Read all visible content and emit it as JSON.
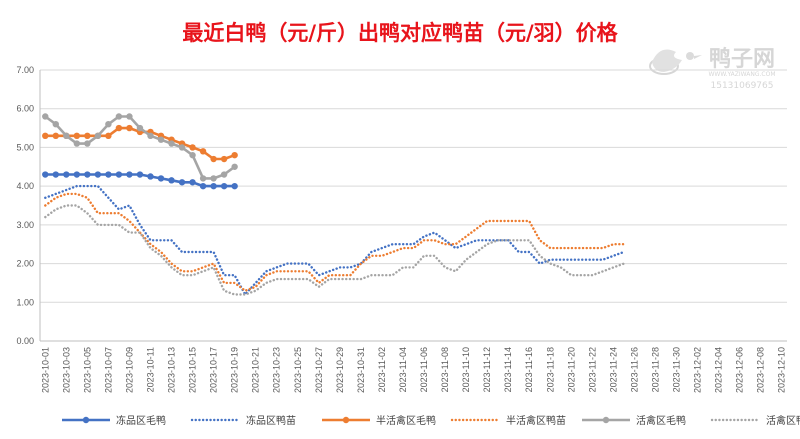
{
  "chart_data": {
    "type": "line",
    "title": "最近白鸭（元/斤）出鸭对应鸭苗（元/羽）价格",
    "title_color": "#e8141b",
    "ylim": [
      0,
      7
    ],
    "y_ticks": [
      "0.00",
      "1.00",
      "2.00",
      "3.00",
      "4.00",
      "5.00",
      "6.00",
      "7.00"
    ],
    "x_tick_labels": [
      "2023-10-01",
      "2023-10-03",
      "2023-10-05",
      "2023-10-07",
      "2023-10-09",
      "2023-10-11",
      "2023-10-13",
      "2023-10-15",
      "2023-10-17",
      "2023-10-19",
      "2023-10-21",
      "2023-10-23",
      "2023-10-25",
      "2023-10-27",
      "2023-10-29",
      "2023-10-31",
      "2023-11-02",
      "2023-11-04",
      "2023-11-06",
      "2023-11-08",
      "2023-11-10",
      "2023-11-12",
      "2023-11-14",
      "2023-11-16",
      "2023-11-18",
      "2023-11-20",
      "2023-11-22",
      "2023-11-24",
      "2023-11-26",
      "2023-11-28",
      "2023-11-30",
      "2023-12-02",
      "2023-12-04",
      "2023-12-06",
      "2023-12-08",
      "2023-12-10"
    ],
    "grid": "horizontal",
    "legend_position": "bottom",
    "series": [
      {
        "name": "冻品区毛鸭",
        "color": "#4472c4",
        "style": "solid-marker",
        "x": [
          "2023-10-01",
          "2023-10-02",
          "2023-10-03",
          "2023-10-04",
          "2023-10-05",
          "2023-10-06",
          "2023-10-07",
          "2023-10-08",
          "2023-10-09",
          "2023-10-10",
          "2023-10-11",
          "2023-10-12",
          "2023-10-13",
          "2023-10-14",
          "2023-10-15",
          "2023-10-16",
          "2023-10-17",
          "2023-10-18",
          "2023-10-19"
        ],
        "values": [
          4.3,
          4.3,
          4.3,
          4.3,
          4.3,
          4.3,
          4.3,
          4.3,
          4.3,
          4.3,
          4.25,
          4.2,
          4.15,
          4.1,
          4.1,
          4.0,
          4.0,
          4.0,
          4.0
        ]
      },
      {
        "name": "冻品区鸭苗",
        "color": "#4472c4",
        "style": "dotted",
        "x": [
          "2023-10-01",
          "2023-10-02",
          "2023-10-03",
          "2023-10-04",
          "2023-10-05",
          "2023-10-06",
          "2023-10-07",
          "2023-10-08",
          "2023-10-09",
          "2023-10-10",
          "2023-10-11",
          "2023-10-12",
          "2023-10-13",
          "2023-10-14",
          "2023-10-15",
          "2023-10-16",
          "2023-10-17",
          "2023-10-18",
          "2023-10-19",
          "2023-10-20",
          "2023-10-21",
          "2023-10-22",
          "2023-10-23",
          "2023-10-24",
          "2023-10-25",
          "2023-10-26",
          "2023-10-27",
          "2023-10-28",
          "2023-10-29",
          "2023-10-30",
          "2023-10-31",
          "2023-11-01",
          "2023-11-02",
          "2023-11-03",
          "2023-11-04",
          "2023-11-05",
          "2023-11-06",
          "2023-11-07",
          "2023-11-08",
          "2023-11-09",
          "2023-11-10",
          "2023-11-11",
          "2023-11-12",
          "2023-11-13",
          "2023-11-14",
          "2023-11-15",
          "2023-11-16",
          "2023-11-17",
          "2023-11-18",
          "2023-11-19",
          "2023-11-20",
          "2023-11-21",
          "2023-11-22",
          "2023-11-23",
          "2023-11-24",
          "2023-11-25"
        ],
        "values": [
          3.7,
          3.8,
          3.9,
          4.0,
          4.0,
          4.0,
          3.7,
          3.4,
          3.5,
          3.0,
          2.6,
          2.6,
          2.6,
          2.3,
          2.3,
          2.3,
          2.3,
          1.7,
          1.7,
          1.2,
          1.5,
          1.8,
          1.9,
          2.0,
          2.0,
          2.0,
          1.7,
          1.8,
          1.9,
          1.9,
          2.0,
          2.3,
          2.4,
          2.5,
          2.5,
          2.5,
          2.7,
          2.8,
          2.6,
          2.4,
          2.5,
          2.6,
          2.6,
          2.6,
          2.6,
          2.3,
          2.3,
          2.0,
          2.1,
          2.1,
          2.1,
          2.1,
          2.1,
          2.1,
          2.2,
          2.3
        ]
      },
      {
        "name": "半活禽区毛鸭",
        "color": "#ed7d31",
        "style": "solid-marker",
        "x": [
          "2023-10-01",
          "2023-10-02",
          "2023-10-03",
          "2023-10-04",
          "2023-10-05",
          "2023-10-06",
          "2023-10-07",
          "2023-10-08",
          "2023-10-09",
          "2023-10-10",
          "2023-10-11",
          "2023-10-12",
          "2023-10-13",
          "2023-10-14",
          "2023-10-15",
          "2023-10-16",
          "2023-10-17",
          "2023-10-18",
          "2023-10-19"
        ],
        "values": [
          5.3,
          5.3,
          5.3,
          5.3,
          5.3,
          5.3,
          5.3,
          5.5,
          5.5,
          5.4,
          5.4,
          5.3,
          5.2,
          5.1,
          5.0,
          4.9,
          4.7,
          4.7,
          4.8
        ]
      },
      {
        "name": "半活禽区鸭苗",
        "color": "#ed7d31",
        "style": "dotted",
        "x": [
          "2023-10-01",
          "2023-10-02",
          "2023-10-03",
          "2023-10-04",
          "2023-10-05",
          "2023-10-06",
          "2023-10-07",
          "2023-10-08",
          "2023-10-09",
          "2023-10-10",
          "2023-10-11",
          "2023-10-12",
          "2023-10-13",
          "2023-10-14",
          "2023-10-15",
          "2023-10-16",
          "2023-10-17",
          "2023-10-18",
          "2023-10-19",
          "2023-10-20",
          "2023-10-21",
          "2023-10-22",
          "2023-10-23",
          "2023-10-24",
          "2023-10-25",
          "2023-10-26",
          "2023-10-27",
          "2023-10-28",
          "2023-10-29",
          "2023-10-30",
          "2023-10-31",
          "2023-11-01",
          "2023-11-02",
          "2023-11-03",
          "2023-11-04",
          "2023-11-05",
          "2023-11-06",
          "2023-11-07",
          "2023-11-08",
          "2023-11-09",
          "2023-11-10",
          "2023-11-11",
          "2023-11-12",
          "2023-11-13",
          "2023-11-14",
          "2023-11-15",
          "2023-11-16",
          "2023-11-17",
          "2023-11-18",
          "2023-11-19",
          "2023-11-20",
          "2023-11-21",
          "2023-11-22",
          "2023-11-23",
          "2023-11-24",
          "2023-11-25"
        ],
        "values": [
          3.5,
          3.7,
          3.8,
          3.8,
          3.7,
          3.3,
          3.3,
          3.3,
          3.1,
          2.8,
          2.5,
          2.3,
          2.0,
          1.8,
          1.8,
          1.9,
          2.0,
          1.5,
          1.5,
          1.3,
          1.4,
          1.7,
          1.8,
          1.8,
          1.8,
          1.8,
          1.5,
          1.7,
          1.7,
          1.7,
          2.0,
          2.2,
          2.2,
          2.3,
          2.4,
          2.4,
          2.6,
          2.6,
          2.5,
          2.5,
          2.7,
          2.9,
          3.1,
          3.1,
          3.1,
          3.1,
          3.1,
          2.6,
          2.4,
          2.4,
          2.4,
          2.4,
          2.4,
          2.4,
          2.5,
          2.5
        ]
      },
      {
        "name": "活禽区毛鸭",
        "color": "#a5a5a5",
        "style": "solid-marker",
        "x": [
          "2023-10-01",
          "2023-10-02",
          "2023-10-03",
          "2023-10-04",
          "2023-10-05",
          "2023-10-06",
          "2023-10-07",
          "2023-10-08",
          "2023-10-09",
          "2023-10-10",
          "2023-10-11",
          "2023-10-12",
          "2023-10-13",
          "2023-10-14",
          "2023-10-15",
          "2023-10-16",
          "2023-10-17",
          "2023-10-18",
          "2023-10-19"
        ],
        "values": [
          5.8,
          5.6,
          5.3,
          5.1,
          5.1,
          5.3,
          5.6,
          5.8,
          5.8,
          5.5,
          5.3,
          5.2,
          5.1,
          5.0,
          4.8,
          4.2,
          4.2,
          4.3,
          4.5
        ]
      },
      {
        "name": "活禽区鸭苗",
        "color": "#a5a5a5",
        "style": "dotted",
        "x": [
          "2023-10-01",
          "2023-10-02",
          "2023-10-03",
          "2023-10-04",
          "2023-10-05",
          "2023-10-06",
          "2023-10-07",
          "2023-10-08",
          "2023-10-09",
          "2023-10-10",
          "2023-10-11",
          "2023-10-12",
          "2023-10-13",
          "2023-10-14",
          "2023-10-15",
          "2023-10-16",
          "2023-10-17",
          "2023-10-18",
          "2023-10-19",
          "2023-10-20",
          "2023-10-21",
          "2023-10-22",
          "2023-10-23",
          "2023-10-24",
          "2023-10-25",
          "2023-10-26",
          "2023-10-27",
          "2023-10-28",
          "2023-10-29",
          "2023-10-30",
          "2023-10-31",
          "2023-11-01",
          "2023-11-02",
          "2023-11-03",
          "2023-11-04",
          "2023-11-05",
          "2023-11-06",
          "2023-11-07",
          "2023-11-08",
          "2023-11-09",
          "2023-11-10",
          "2023-11-11",
          "2023-11-12",
          "2023-11-13",
          "2023-11-14",
          "2023-11-15",
          "2023-11-16",
          "2023-11-17",
          "2023-11-18",
          "2023-11-19",
          "2023-11-20",
          "2023-11-21",
          "2023-11-22",
          "2023-11-23",
          "2023-11-24",
          "2023-11-25"
        ],
        "values": [
          3.2,
          3.4,
          3.5,
          3.5,
          3.3,
          3.0,
          3.0,
          3.0,
          2.8,
          2.8,
          2.4,
          2.2,
          1.9,
          1.7,
          1.7,
          1.8,
          1.9,
          1.3,
          1.2,
          1.2,
          1.3,
          1.5,
          1.6,
          1.6,
          1.6,
          1.6,
          1.4,
          1.6,
          1.6,
          1.6,
          1.6,
          1.7,
          1.7,
          1.7,
          1.9,
          1.9,
          2.2,
          2.2,
          1.9,
          1.8,
          2.1,
          2.3,
          2.5,
          2.6,
          2.6,
          2.6,
          2.6,
          2.2,
          2.0,
          1.9,
          1.7,
          1.7,
          1.7,
          1.8,
          1.9,
          2.0
        ]
      }
    ]
  },
  "watermark": {
    "brand": "鸭子网",
    "url": "WWW.YAZIWANG.COM",
    "phone": "15131069765",
    "color": "#c9c9c9"
  }
}
